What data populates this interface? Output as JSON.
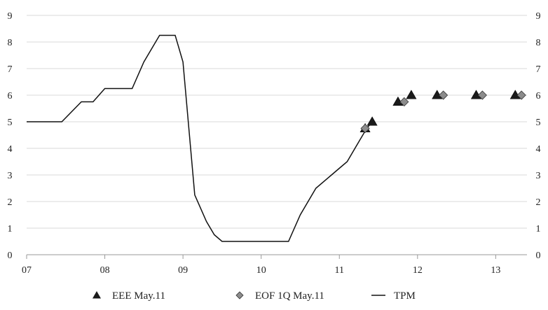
{
  "chart_data": {
    "type": "line",
    "x_tick_labels": [
      "07",
      "08",
      "09",
      "10",
      "11",
      "12",
      "13"
    ],
    "x_ticks": [
      2007,
      2008,
      2009,
      2010,
      2011,
      2012,
      2013
    ],
    "xlim": [
      2007,
      2013.4
    ],
    "y_tick_labels": [
      "0",
      "1",
      "2",
      "3",
      "4",
      "5",
      "6",
      "7",
      "8",
      "9"
    ],
    "ylim": [
      0,
      9
    ],
    "grid": true,
    "legend_position": "bottom",
    "series": [
      {
        "name": "TPM",
        "kind": "line",
        "color": "#111111",
        "x": [
          2007.0,
          2007.45,
          2007.7,
          2007.85,
          2008.0,
          2008.35,
          2008.5,
          2008.7,
          2008.9,
          2009.0,
          2009.15,
          2009.3,
          2009.4,
          2009.5,
          2010.0,
          2010.35,
          2010.5,
          2010.7,
          2010.9,
          2011.0,
          2011.1,
          2011.25,
          2011.35,
          2011.42
        ],
        "values": [
          5.0,
          5.0,
          5.75,
          5.75,
          6.25,
          6.25,
          7.25,
          8.25,
          8.25,
          7.25,
          2.25,
          1.25,
          0.75,
          0.5,
          0.5,
          0.5,
          1.5,
          2.5,
          3.0,
          3.25,
          3.5,
          4.25,
          4.75,
          5.0
        ]
      },
      {
        "name": "EEE May.11",
        "kind": "markers",
        "marker": "triangle",
        "color": "#1a1a1a",
        "x": [
          2011.33,
          2011.42,
          2011.75,
          2011.92,
          2012.25,
          2012.75,
          2013.25
        ],
        "values": [
          4.75,
          5.0,
          5.75,
          6.0,
          6.0,
          6.0,
          6.0
        ]
      },
      {
        "name": "EOF 1Q May.11",
        "kind": "markers",
        "marker": "diamond",
        "color": "#8c8c8c",
        "x": [
          2011.33,
          2011.83,
          2012.33,
          2012.83,
          2013.33
        ],
        "values": [
          4.75,
          5.75,
          6.0,
          6.0,
          6.0
        ]
      }
    ],
    "legend": [
      "EEE May.11",
      "EOF 1Q May.11",
      "TPM"
    ]
  }
}
